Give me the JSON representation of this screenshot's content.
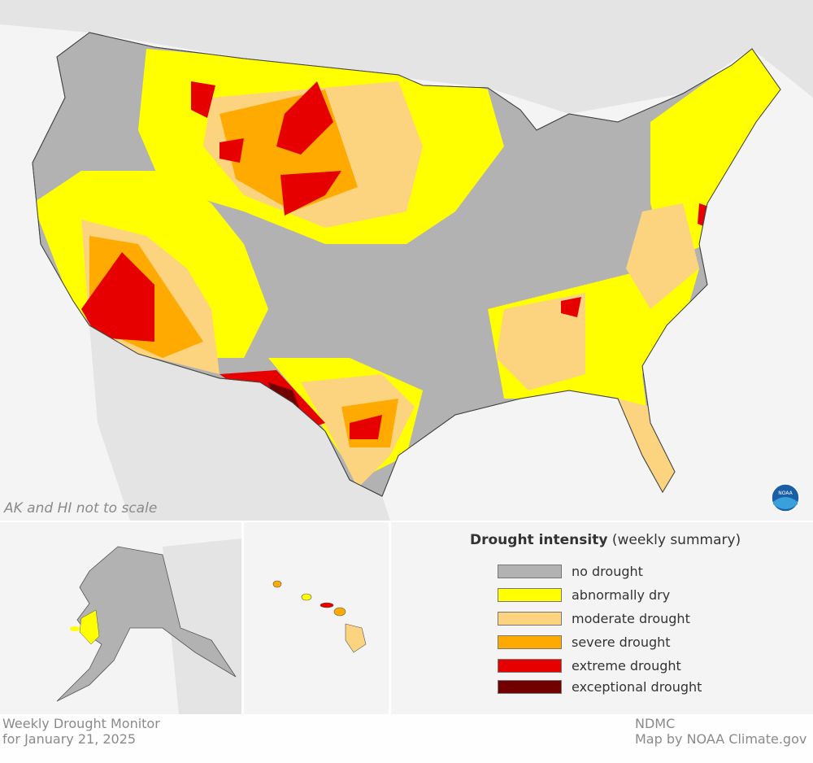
{
  "map": {
    "scale_note": "AK and HI not to scale",
    "logo": "NOAA"
  },
  "legend": {
    "title_bold": "Drought intensity",
    "title_rest": "(weekly summary)",
    "items": [
      {
        "label": "no drought",
        "color": "#b2b2b2"
      },
      {
        "label": "abnormally dry",
        "color": "#ffff00"
      },
      {
        "label": "moderate drought",
        "color": "#fcd37f"
      },
      {
        "label": "severe drought",
        "color": "#ffaa00"
      },
      {
        "label": "extreme drought",
        "color": "#e60000"
      },
      {
        "label": "exceptional drought",
        "color": "#730000"
      }
    ]
  },
  "footer": {
    "title_line1": "Weekly Drought Monitor",
    "title_line2": "for January 21, 2025",
    "source_line1": "NDMC",
    "source_line2": "Map by NOAA Climate.gov"
  }
}
